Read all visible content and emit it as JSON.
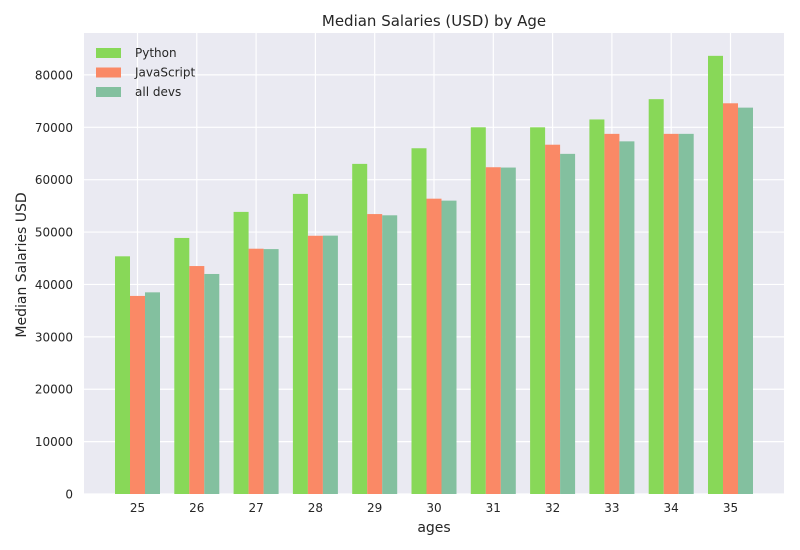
{
  "chart_data": {
    "type": "bar",
    "title": "Median Salaries (USD) by Age",
    "xlabel": "ages",
    "ylabel": "Median Salaries USD",
    "categories": [
      "25",
      "26",
      "27",
      "28",
      "29",
      "30",
      "31",
      "32",
      "33",
      "34",
      "35"
    ],
    "series": [
      {
        "name": "Python",
        "color": "#88d858",
        "values": [
          45372,
          48876,
          53850,
          57287,
          63016,
          65998,
          70003,
          70000,
          71496,
          75370,
          83640
        ]
      },
      {
        "name": "JavaScript",
        "color": "#fa8966",
        "values": [
          37810,
          43515,
          46823,
          49293,
          53437,
          56373,
          62375,
          66674,
          68745,
          68746,
          74583
        ]
      },
      {
        "name": "all devs",
        "color": "#83c09f",
        "values": [
          38496,
          42000,
          46752,
          49320,
          53200,
          56000,
          62316,
          64928,
          67317,
          68748,
          73752
        ]
      }
    ],
    "yticks": [
      "0",
      "10000",
      "20000",
      "30000",
      "40000",
      "50000",
      "60000",
      "70000",
      "80000"
    ],
    "ylim": [
      0,
      88000
    ],
    "grid": true,
    "legend_position": "top-left"
  }
}
